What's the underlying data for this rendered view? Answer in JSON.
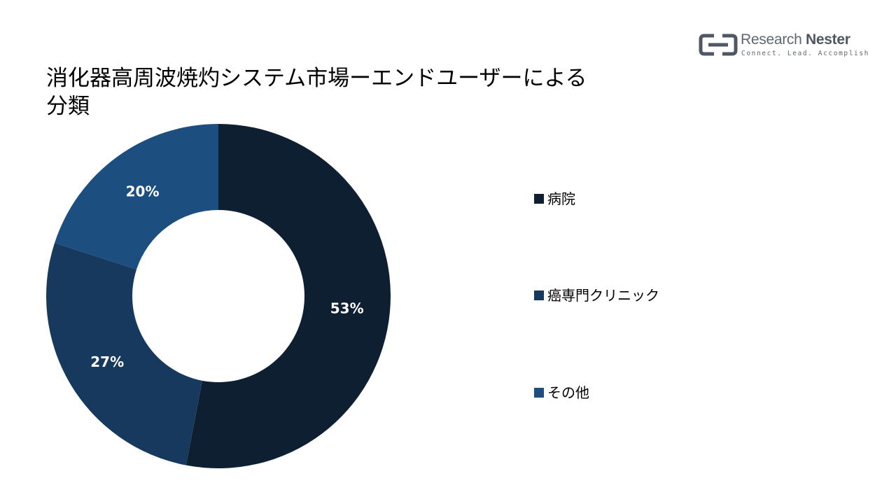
{
  "logo": {
    "name_part1": "Research",
    "name_part2": "Nester",
    "tagline": "Connect. Lead. Accomplish"
  },
  "title_line1": "消化器高周波焼灼システム市場ーエンドユーザーによる",
  "title_line2": "分類",
  "chart_data": {
    "type": "donut",
    "title": "消化器高周波焼灼システム市場ーエンドユーザーによる分類",
    "series": [
      {
        "name": "病院",
        "value": 53,
        "label": "53%",
        "color": "#0d1f30"
      },
      {
        "name": "癌専門クリニック",
        "value": 27,
        "label": "27%",
        "color": "#17395e"
      },
      {
        "name": "その他",
        "value": 20,
        "label": "20%",
        "color": "#1d4e80"
      }
    ],
    "legend_position": "right"
  }
}
